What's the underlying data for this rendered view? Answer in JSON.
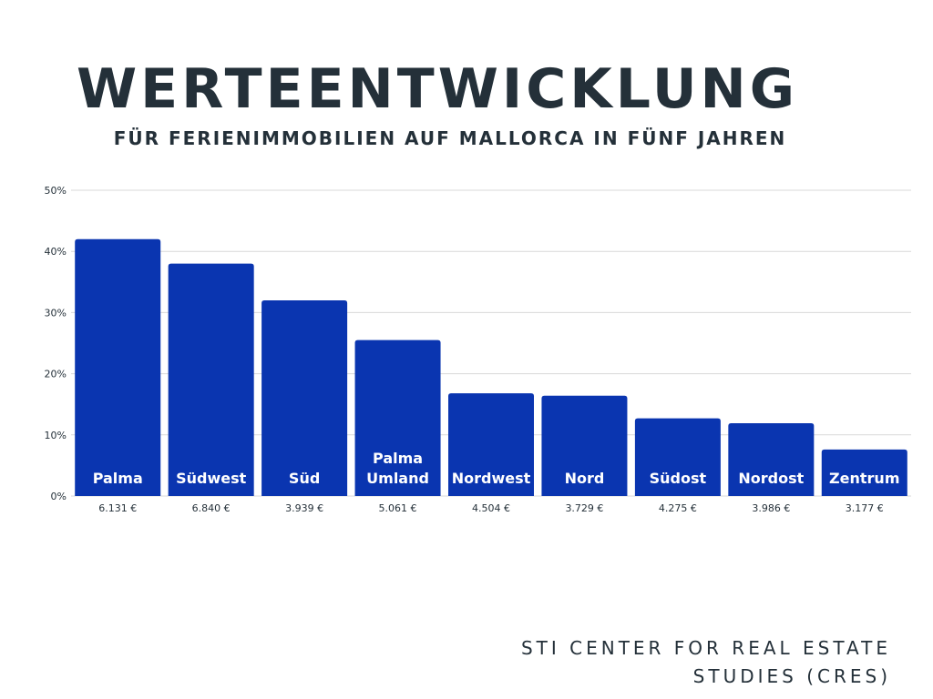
{
  "title": "WERTEENTWICKLUNG",
  "subtitle": "FÜR FERIENIMMOBILIEN AUF MALLORCA IN FÜNF JAHREN",
  "source": {
    "line1": "STI CENTER FOR REAL ESTATE",
    "line2": "STUDIES (CRES)"
  },
  "colors": {
    "bar": "#0a35b0",
    "grid": "#d9d9d9",
    "text": "#243039"
  },
  "chart_data": {
    "type": "bar",
    "categories": [
      "Palma",
      "Südwest",
      "Süd",
      "Palma Umland",
      "Nordwest",
      "Nord",
      "Südost",
      "Nordost",
      "Zentrum"
    ],
    "category_lines": [
      [
        "Palma"
      ],
      [
        "Südwest"
      ],
      [
        "Süd"
      ],
      [
        "Palma",
        "Umland"
      ],
      [
        "Nordwest"
      ],
      [
        "Nord"
      ],
      [
        "Südost"
      ],
      [
        "Nordost"
      ],
      [
        "Zentrum"
      ]
    ],
    "values": [
      42,
      38,
      32,
      25.5,
      16.8,
      16.4,
      12.7,
      11.9,
      7.6
    ],
    "price_labels": [
      "6.131 €",
      "6.840 €",
      "3.939 €",
      "5.061 €",
      "4.504 €",
      "3.729 €",
      "4.275 €",
      "3.986 €",
      "3.177 €"
    ],
    "ylim": [
      0,
      50
    ],
    "yticks": [
      0,
      10,
      20,
      30,
      40,
      50
    ],
    "ytick_labels": [
      "0%",
      "10%",
      "20%",
      "30%",
      "40%",
      "50%"
    ],
    "grid": true,
    "xlabel": "",
    "ylabel": ""
  }
}
